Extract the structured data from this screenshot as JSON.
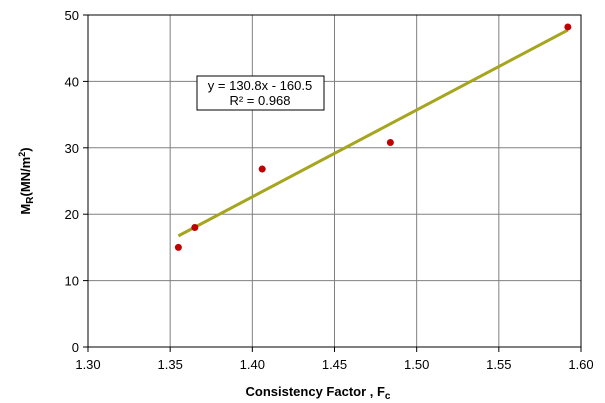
{
  "chart_data": {
    "type": "scatter",
    "title": "",
    "xlabel": "Consistency Factor , F",
    "xlabel_sub": "c",
    "ylabel_main": "M",
    "ylabel_sub": "R",
    "ylabel_unit": "(MN/m",
    "ylabel_sup": "2",
    "ylabel_close": ")",
    "xlim": [
      1.3,
      1.6
    ],
    "ylim": [
      0,
      50
    ],
    "x_ticks": [
      "1.30",
      "1.35",
      "1.40",
      "1.45",
      "1.50",
      "1.55",
      "1.60"
    ],
    "y_ticks": [
      "0",
      "10",
      "20",
      "30",
      "40",
      "50"
    ],
    "grid": true,
    "points": [
      {
        "x": 1.355,
        "y": 15.0
      },
      {
        "x": 1.365,
        "y": 18.0
      },
      {
        "x": 1.406,
        "y": 26.8
      },
      {
        "x": 1.484,
        "y": 30.8
      },
      {
        "x": 1.592,
        "y": 48.2
      }
    ],
    "point_color": "#c00000",
    "trendline": {
      "slope": 130.8,
      "intercept": -160.5,
      "x_range": [
        1.355,
        1.592
      ],
      "color": "#a5a51e",
      "equation": "y = 130.8x - 160.5",
      "r_squared": "R² = 0.968"
    }
  }
}
